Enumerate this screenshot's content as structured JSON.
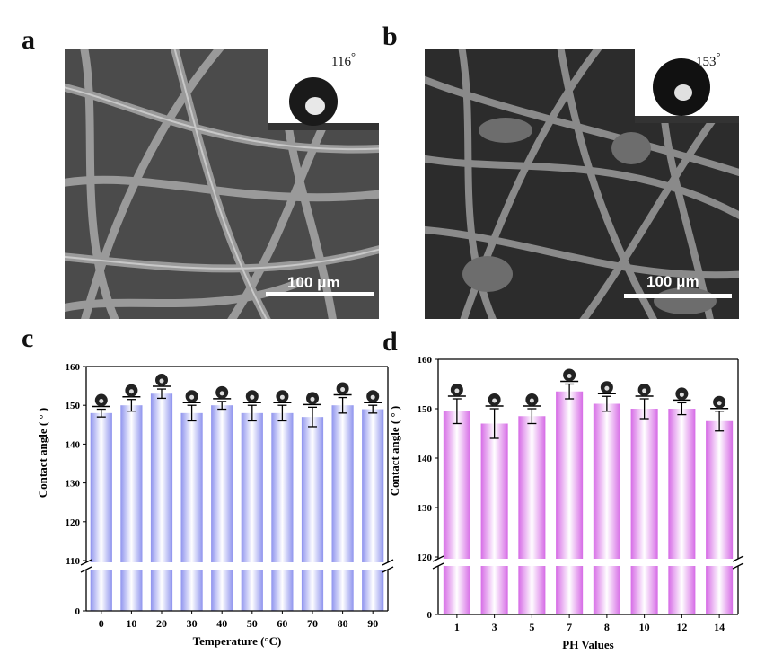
{
  "panels": {
    "a": {
      "letter": "a",
      "angle": "116",
      "degree": "°",
      "scale": "100 μm"
    },
    "b": {
      "letter": "b",
      "angle": "153",
      "degree": "°",
      "scale": "100 μm"
    },
    "c": {
      "letter": "c"
    },
    "d": {
      "letter": "d"
    }
  },
  "colors": {
    "bar_c": "#8f94ee",
    "bar_d": "#d66be6",
    "axis": "#000000"
  },
  "chart_data": [
    {
      "type": "bar",
      "categories": [
        "0",
        "10",
        "20",
        "30",
        "40",
        "50",
        "60",
        "70",
        "80",
        "90"
      ],
      "values": [
        148,
        150,
        153,
        148,
        150,
        148,
        148,
        147,
        150,
        149
      ],
      "errors": [
        1,
        1.5,
        1.2,
        2,
        1,
        2,
        2,
        2.5,
        2,
        1
      ],
      "xlabel": "Temperature (°C)",
      "ylabel": "Contact angle ( ° )",
      "ylim": [
        0,
        160
      ],
      "axis_break": [
        10,
        110
      ],
      "yticks": [
        "0",
        "110",
        "120",
        "130",
        "140",
        "150",
        "160"
      ],
      "color": "#8f94ee"
    },
    {
      "type": "bar",
      "categories": [
        "1",
        "3",
        "5",
        "7",
        "8",
        "10",
        "12",
        "14"
      ],
      "values": [
        149.5,
        147,
        148.5,
        153.5,
        151,
        150,
        150,
        147.5
      ],
      "errors": [
        2.5,
        3,
        1.5,
        1.5,
        1.5,
        2,
        1.2,
        2
      ],
      "xlabel": "PH Values",
      "ylabel": "Contact angle ( ° )",
      "ylim": [
        0,
        160
      ],
      "axis_break": [
        10,
        120
      ],
      "yticks": [
        "0",
        "120",
        "130",
        "140",
        "150",
        "160"
      ],
      "color": "#d66be6"
    }
  ]
}
